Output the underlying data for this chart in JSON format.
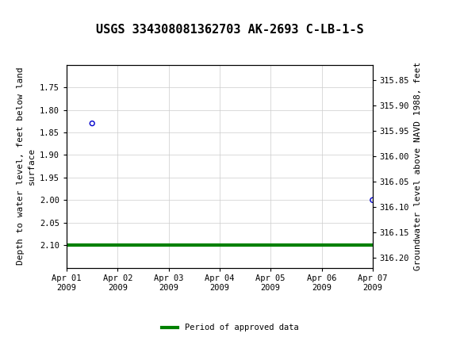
{
  "title": "USGS 334308081362703 AK-2693 C-LB-1-S",
  "header_color": "#1a7a3c",
  "bg_color": "#ffffff",
  "plot_bg_color": "#ffffff",
  "grid_color": "#cccccc",
  "left_ylabel_lines": [
    "Depth to water level, feet below land",
    "surface"
  ],
  "right_ylabel": "Groundwater level above NAVD 1988, feet",
  "ylim_left": [
    1.7,
    2.15
  ],
  "ylim_left_ticks": [
    1.75,
    1.8,
    1.85,
    1.9,
    1.95,
    2.0,
    2.05,
    2.1
  ],
  "ylim_right_bottom": 315.82,
  "ylim_right_top": 316.22,
  "ylim_right_ticks": [
    315.85,
    315.9,
    315.95,
    316.0,
    316.05,
    316.1,
    316.15,
    316.2
  ],
  "xstart": "2009-04-01",
  "xend": "2009-04-07",
  "xtick_days": [
    0,
    1,
    2,
    3,
    4,
    5,
    6
  ],
  "xtick_labels": [
    "Apr 01\n2009",
    "Apr 02\n2009",
    "Apr 03\n2009",
    "Apr 04\n2009",
    "Apr 05\n2009",
    "Apr 06\n2009",
    "Apr 07\n2009"
  ],
  "scatter_days": [
    0.5,
    6
  ],
  "scatter_values": [
    1.83,
    2.0
  ],
  "scatter_color": "#0000cc",
  "green_line_yval": 2.1,
  "green_line_color": "#008000",
  "green_line_lw": 3,
  "legend_label": "Period of approved data",
  "font_name": "DejaVu Sans Mono",
  "title_fontsize": 11,
  "tick_fontsize": 7.5,
  "label_fontsize": 8
}
